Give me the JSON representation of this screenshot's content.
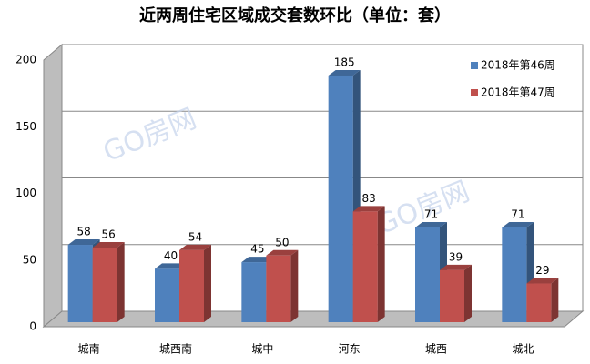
{
  "chart_data": {
    "type": "bar3d",
    "title": "近两周住宅区域成交套数环比（单位：套）",
    "categories": [
      "城南",
      "城西南",
      "城中",
      "河东",
      "城西",
      "城北"
    ],
    "series": [
      {
        "name": "2018年第46周",
        "color": "#4f81bd",
        "values": [
          58,
          40,
          45,
          185,
          71,
          71
        ]
      },
      {
        "name": "2018年第47周",
        "color": "#c0504d",
        "values": [
          56,
          54,
          50,
          83,
          39,
          29
        ]
      }
    ],
    "ylim": [
      0,
      200
    ],
    "yticks": [
      0,
      50,
      100,
      150,
      200
    ],
    "grid": true,
    "legend": "top-right",
    "watermark": "GO房网"
  }
}
